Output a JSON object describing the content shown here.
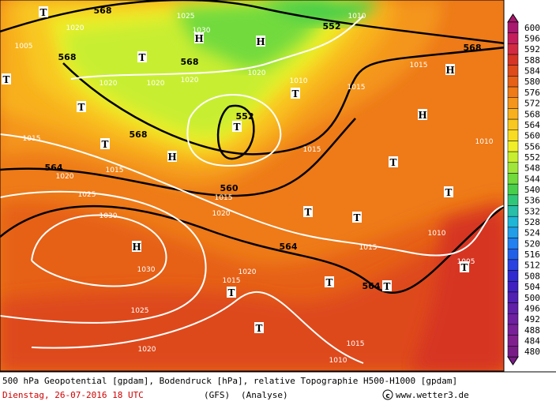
{
  "colorbar": {
    "values": [
      600,
      596,
      592,
      588,
      584,
      580,
      576,
      572,
      568,
      564,
      560,
      556,
      552,
      548,
      544,
      540,
      536,
      532,
      528,
      524,
      520,
      516,
      512,
      508,
      504,
      500,
      496,
      492,
      488,
      484,
      480
    ],
    "colors": [
      "#a8186e",
      "#c41e5c",
      "#d22a42",
      "#d63424",
      "#de4a1a",
      "#e66018",
      "#ee7a18",
      "#f4961c",
      "#f8b01e",
      "#f8c820",
      "#f8dc24",
      "#f0ee28",
      "#c8ee30",
      "#a0e63a",
      "#72da3c",
      "#48ce4a",
      "#30c67a",
      "#28bea8",
      "#20b6d6",
      "#229ee8",
      "#2280f0",
      "#2260e8",
      "#2a42e0",
      "#302ad0",
      "#4020c0",
      "#5020b2",
      "#6020a8",
      "#6e20a0",
      "#782098",
      "#80208e",
      "#781c86"
    ]
  },
  "geopotential_labels": [
    "568",
    "552",
    "568",
    "568",
    "568",
    "552",
    "568",
    "564",
    "560",
    "564",
    "564"
  ],
  "pressure_labels": [
    "1025",
    "1020",
    "1030",
    "1005",
    "1020",
    "1020",
    "1020",
    "1020",
    "1010",
    "1015",
    "1015",
    "1010",
    "1015",
    "1015",
    "1020",
    "1025",
    "1015",
    "1010",
    "1015",
    "1020",
    "1030",
    "1030",
    "1010",
    "1015",
    "1020",
    "1015",
    "1025",
    "1020",
    "1015",
    "1010",
    "1005"
  ],
  "pressure_centers": [
    "T",
    "H",
    "H",
    "T",
    "T",
    "T",
    "T",
    "H",
    "T",
    "T",
    "H",
    "H",
    "T",
    "T",
    "T",
    "T",
    "H",
    "T",
    "T",
    "T",
    "T",
    "T"
  ],
  "footer": {
    "line1": "500 hPa Geopotential [gpdam], Bodendruck [hPa], relative Topographie H500-H1000 [gpdam]",
    "date": "Dienstag, 26-07-2016  18 UTC",
    "model": "(GFS)",
    "run": "(Analyse)",
    "source": "www.wetter3.de"
  }
}
